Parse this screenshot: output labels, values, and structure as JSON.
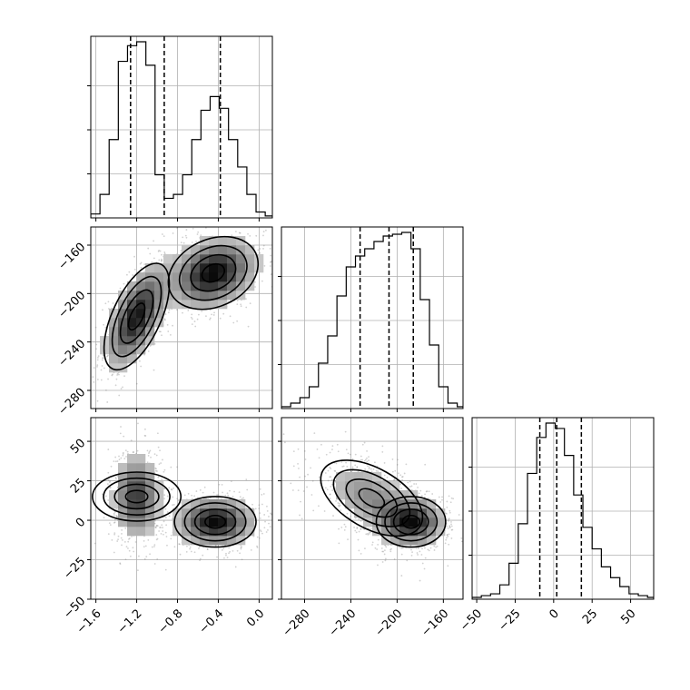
{
  "chart_data": {
    "type": "corner",
    "panels": [
      {
        "id": "hist-p1",
        "type": "histogram",
        "xlim": [
          -1.65,
          0.13
        ],
        "xticks": [
          -1.6,
          -1.2,
          -0.8,
          -0.4,
          0.0
        ],
        "xtick_labels": [],
        "bins": [
          -1.65,
          -1.56,
          -1.47,
          -1.38,
          -1.29,
          -1.2,
          -1.11,
          -1.02,
          -0.93,
          -0.84,
          -0.75,
          -0.66,
          -0.57,
          -0.48,
          -0.39,
          -0.3,
          -0.21,
          -0.12,
          -0.03,
          0.06,
          0.13
        ],
        "counts": [
          2,
          12,
          40,
          80,
          88,
          90,
          78,
          22,
          10,
          12,
          22,
          40,
          55,
          62,
          56,
          40,
          26,
          12,
          3,
          1
        ],
        "quantiles": [
          -1.26,
          -0.93,
          -0.38
        ],
        "grid": true
      },
      {
        "id": "scatter-p1-p2",
        "type": "density-contour",
        "xlim": [
          -1.65,
          0.13
        ],
        "ylim": [
          -295,
          -145
        ],
        "xticks": [
          -1.6,
          -1.2,
          -0.8,
          -0.4,
          0.0
        ],
        "yticks": [
          -160,
          -200,
          -240,
          -280
        ],
        "ytick_labels": [
          "−160",
          "−200",
          "−240",
          "−280"
        ],
        "xtick_labels": [],
        "modes": [
          {
            "cx": -1.2,
            "cy": -219,
            "sx": 0.16,
            "sy": 22,
            "rho": 0.6,
            "w": 0.45
          },
          {
            "cx": -0.45,
            "cy": -183,
            "sx": 0.22,
            "sy": 15,
            "rho": 0.25,
            "w": 0.55
          }
        ],
        "grid": true
      },
      {
        "id": "hist-p2",
        "type": "histogram",
        "xlim": [
          -300,
          -143
        ],
        "xticks": [
          -280,
          -240,
          -200,
          -160
        ],
        "xtick_labels": [],
        "bins": [
          -300,
          -292,
          -284,
          -276,
          -268,
          -260,
          -252,
          -244,
          -236,
          -228,
          -220,
          -212,
          -204,
          -196,
          -188,
          -180,
          -172,
          -164,
          -156,
          -148,
          -143
        ],
        "counts": [
          1,
          3,
          6,
          12,
          25,
          40,
          62,
          78,
          84,
          88,
          92,
          95,
          96,
          97,
          88,
          60,
          35,
          12,
          3,
          1
        ],
        "quantiles": [
          -232,
          -207,
          -186
        ],
        "grid": true
      },
      {
        "id": "scatter-p1-p3",
        "type": "density-contour",
        "xlim": [
          -1.65,
          0.13
        ],
        "ylim": [
          -50,
          65
        ],
        "xticks": [
          -1.6,
          -1.2,
          -0.8,
          -0.4,
          0.0
        ],
        "xtick_labels": [
          "−1.6",
          "−1.2",
          "−0.8",
          "−0.4",
          "0.0"
        ],
        "yticks": [
          50,
          25,
          0,
          -25,
          -50
        ],
        "ytick_labels": [
          "50",
          "25",
          "0",
          "−25",
          "−50"
        ],
        "modes": [
          {
            "cx": -1.2,
            "cy": 15,
            "sx": 0.12,
            "sy": 14,
            "rho": 0.0,
            "w": 0.45
          },
          {
            "cx": -0.43,
            "cy": -1,
            "sx": 0.2,
            "sy": 8,
            "rho": 0.0,
            "w": 0.55
          }
        ],
        "grid": true
      },
      {
        "id": "scatter-p2-p3",
        "type": "density-contour",
        "xlim": [
          -300,
          -143
        ],
        "ylim": [
          -50,
          65
        ],
        "xticks": [
          -280,
          -240,
          -200,
          -160
        ],
        "xtick_labels": [
          "−280",
          "−240",
          "−200",
          "−160"
        ],
        "yticks": [
          50,
          25,
          0,
          -25,
          -50
        ],
        "ytick_labels": [],
        "modes": [
          {
            "cx": -222,
            "cy": 14,
            "sx": 22,
            "sy": 12,
            "rho": -0.5,
            "w": 0.45
          },
          {
            "cx": -188,
            "cy": -1,
            "sx": 15,
            "sy": 8,
            "rho": 0.0,
            "w": 0.55
          }
        ],
        "grid": true
      },
      {
        "id": "hist-p3",
        "type": "histogram",
        "xlim": [
          -53,
          65
        ],
        "xticks": [
          -50,
          -25,
          0,
          25,
          50
        ],
        "xtick_labels": [
          "−50",
          "−25",
          "0",
          "25",
          "50"
        ],
        "bins": [
          -53,
          -47,
          -41,
          -35,
          -29,
          -23,
          -17,
          -11,
          -5,
          1,
          7,
          13,
          19,
          25,
          31,
          37,
          43,
          49,
          55,
          61,
          65
        ],
        "counts": [
          1,
          2,
          3,
          8,
          20,
          42,
          70,
          90,
          98,
          95,
          80,
          58,
          40,
          28,
          18,
          12,
          7,
          3,
          2,
          1
        ],
        "quantiles": [
          -9,
          2,
          18
        ],
        "grid": true
      }
    ]
  }
}
